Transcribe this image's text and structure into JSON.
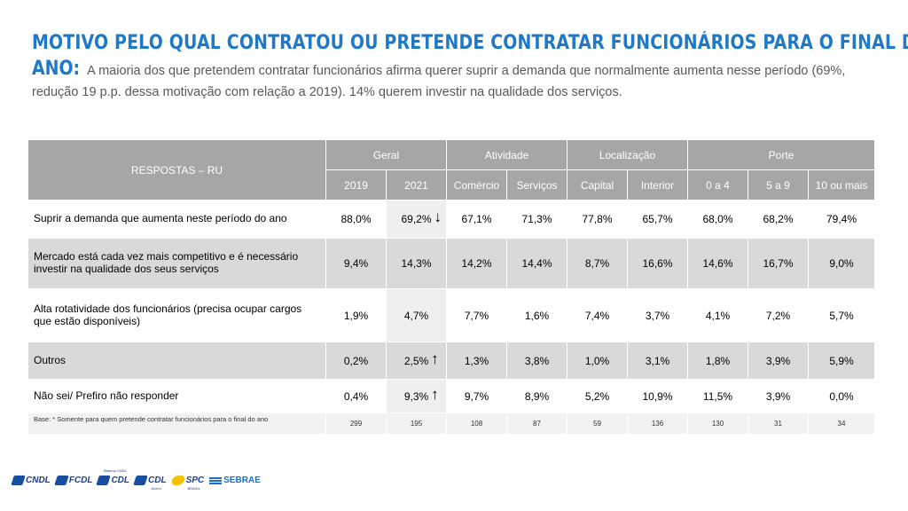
{
  "title": {
    "main": "MOTIVO PELO QUAL CONTRATOU OU PRETENDE CONTRATAR FUNCIONÁRIOS PARA O FINAL DO",
    "lead": "ANO:",
    "text_line1": " A maioria dos que pretendem contratar funcionários afirma querer suprir a demanda que normalmente aumenta nesse período (69%,",
    "text_line2": "redução 19 p.p. dessa motivação com relação a 2019). 14% querem investir na qualidade dos serviços."
  },
  "table": {
    "responses_header": "RESPOSTAS  – RU",
    "groups": [
      "Geral",
      "Atividade",
      "Localização",
      "Porte"
    ],
    "columns": [
      "2019",
      "2021",
      "Comércio",
      "Serviços",
      "Capital",
      "Interior",
      "0 a 4",
      "5 a 9",
      "10 ou mais"
    ],
    "rows": [
      {
        "label": "Suprir a demanda que aumenta neste período do ano",
        "values": [
          "88,0%",
          "69,2%",
          "67,1%",
          "71,3%",
          "77,8%",
          "65,7%",
          "68,0%",
          "68,2%",
          "79,4%"
        ],
        "arrow": "↓"
      },
      {
        "label": "Mercado está cada vez mais competitivo e é necessário investir na qualidade dos seus serviços",
        "values": [
          "9,4%",
          "14,3%",
          "14,2%",
          "14,4%",
          "8,7%",
          "16,6%",
          "14,6%",
          "16,7%",
          "9,0%"
        ],
        "arrow": ""
      },
      {
        "label": "Alta rotatividade dos funcionários (precisa ocupar cargos que estão disponíveis)",
        "values": [
          "1,9%",
          "4,7%",
          "7,7%",
          "1,6%",
          "7,4%",
          "3,7%",
          "4,1%",
          "7,2%",
          "5,7%"
        ],
        "arrow": ""
      },
      {
        "label": "Outros",
        "values": [
          "0,2%",
          "2,5%",
          "1,3%",
          "3,8%",
          "1,0%",
          "3,1%",
          "1,8%",
          "3,9%",
          "5,9%"
        ],
        "arrow": "↑"
      },
      {
        "label": "Não sei/ Prefiro não responder",
        "values": [
          "0,4%",
          "9,3%",
          "9,7%",
          "8,9%",
          "5,2%",
          "10,9%",
          "11,5%",
          "3,9%",
          "0,0%"
        ],
        "arrow": "↑"
      }
    ],
    "base": {
      "label": "Base: * Somente para quem pretende contratar funcionários para o final do ano",
      "values": [
        "299",
        "195",
        "108",
        "87",
        "59",
        "136",
        "130",
        "31",
        "34"
      ]
    }
  },
  "logos": [
    {
      "name": "CNDL",
      "small": "",
      "sub": ""
    },
    {
      "name": "FCDL",
      "small": "",
      "sub": ""
    },
    {
      "name": "CDL",
      "small": "Sistema CNDL",
      "sub": ""
    },
    {
      "name": "CDL",
      "small": "",
      "sub": "Jovem"
    },
    {
      "name": "SPC",
      "small": "",
      "sub": "BRASIL"
    },
    {
      "name": "SEBRAE",
      "small": "",
      "sub": ""
    }
  ],
  "colors": {
    "title": "#1f78c8",
    "header_bg": "#a6a6a6",
    "shaded_row": "#d9d9d9",
    "text_gray": "#595959"
  }
}
